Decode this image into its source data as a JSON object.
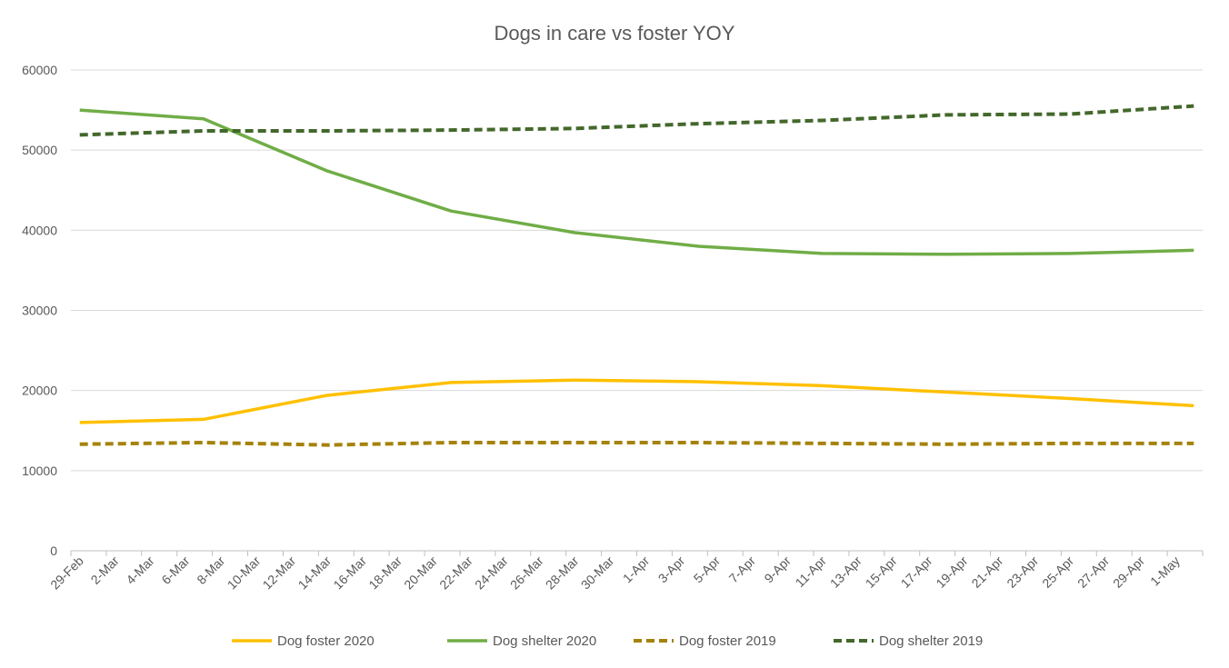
{
  "chart_data": {
    "type": "line",
    "title": "Dogs in care vs foster YOY",
    "xlabel": "",
    "ylabel": "",
    "ylim": [
      0,
      60000
    ],
    "yticks": [
      0,
      10000,
      20000,
      30000,
      40000,
      50000,
      60000
    ],
    "grid": true,
    "legend_position": "bottom",
    "x_categories_start": "29-Feb",
    "x_categories_end": "2-May",
    "tick_labels": [
      "29-Feb",
      "2-Mar",
      "4-Mar",
      "6-Mar",
      "8-Mar",
      "10-Mar",
      "12-Mar",
      "14-Mar",
      "16-Mar",
      "18-Mar",
      "20-Mar",
      "22-Mar",
      "24-Mar",
      "26-Mar",
      "28-Mar",
      "30-Mar",
      "1-Apr",
      "3-Apr",
      "5-Apr",
      "7-Apr",
      "9-Apr",
      "11-Apr",
      "13-Apr",
      "15-Apr",
      "17-Apr",
      "19-Apr",
      "21-Apr",
      "23-Apr",
      "25-Apr",
      "27-Apr",
      "29-Apr",
      "1-May"
    ],
    "x": [
      "29-Feb",
      "7-Mar",
      "14-Mar",
      "21-Mar",
      "28-Mar",
      "4-Apr",
      "11-Apr",
      "18-Apr",
      "25-Apr",
      "2-May"
    ],
    "series": [
      {
        "name": "Dog foster 2020",
        "color": "#FFC000",
        "dash": false,
        "values": [
          16000,
          16400,
          19400,
          21000,
          21300,
          21100,
          20600,
          19800,
          19000,
          18100
        ]
      },
      {
        "name": "Dog shelter 2020",
        "color": "#70AD47",
        "dash": false,
        "values": [
          55000,
          53900,
          47400,
          42400,
          39700,
          38000,
          37100,
          37000,
          37100,
          37500
        ]
      },
      {
        "name": "Dog foster 2019",
        "color": "#A5820A",
        "dash": true,
        "values": [
          13300,
          13500,
          13200,
          13500,
          13500,
          13500,
          13400,
          13300,
          13400,
          13400
        ]
      },
      {
        "name": "Dog shelter 2019",
        "color": "#43682B",
        "dash": true,
        "values": [
          51900,
          52400,
          52400,
          52500,
          52700,
          53300,
          53700,
          54400,
          54500,
          55500
        ]
      }
    ]
  }
}
